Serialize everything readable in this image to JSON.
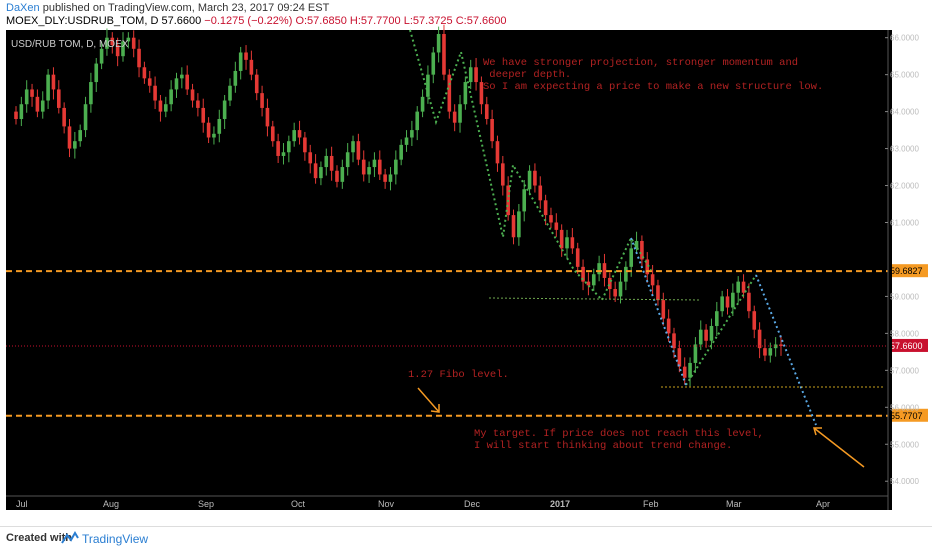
{
  "header": {
    "author": "DaXen",
    "published": "published on TradingView.com, March 23, 2017 09:24 EST",
    "symbol": "MOEX_DLY:USDRUB_TOM, D",
    "last": "57.6600",
    "change": "−0.1275 (−0.22%)",
    "open": "O:57.6850",
    "high": "H:57.7700",
    "low": "L:57.3725",
    "close": "C:57.6600"
  },
  "chart_label": "USD/RUB TOM, D, MOEX",
  "chart_data": {
    "type": "candlestick",
    "x_labels": [
      "Jul",
      "Aug",
      "Sep",
      "Oct",
      "Nov",
      "Dec",
      "2017",
      "Feb",
      "Mar",
      "Apr"
    ],
    "y_ticks": [
      "66.0000",
      "65.0000",
      "64.0000",
      "63.0000",
      "62.0000",
      "61.0000",
      "59.0000",
      "58.0000",
      "57.0000",
      "56.0000",
      "55.0000",
      "54.0000"
    ],
    "ylim": [
      53.6,
      66.1
    ],
    "last_price": "57.6600",
    "levels": [
      {
        "value": "59.6827",
        "color": "#f59a23"
      },
      {
        "value": "55.7707",
        "color": "#f59a23"
      }
    ],
    "closes": [
      63.8,
      64.2,
      64.6,
      64.4,
      64.0,
      64.3,
      65.0,
      64.6,
      64.1,
      63.6,
      63.0,
      63.2,
      63.5,
      64.2,
      64.8,
      65.3,
      65.7,
      66.0,
      65.8,
      65.5,
      65.9,
      66.0,
      65.7,
      65.2,
      64.9,
      64.7,
      64.3,
      64.0,
      64.2,
      64.6,
      64.9,
      65.0,
      64.6,
      64.3,
      64.1,
      63.7,
      63.3,
      63.4,
      63.8,
      64.3,
      64.7,
      65.1,
      65.6,
      65.4,
      65.0,
      64.5,
      64.1,
      63.6,
      63.2,
      62.8,
      62.9,
      63.2,
      63.5,
      63.3,
      62.9,
      62.6,
      62.2,
      62.5,
      62.8,
      62.4,
      62.1,
      62.5,
      62.9,
      63.2,
      62.7,
      62.3,
      62.5,
      62.7,
      62.3,
      62.1,
      62.3,
      62.7,
      63.1,
      63.3,
      63.5,
      64.0,
      64.4,
      65.0,
      65.6,
      66.1,
      65.0,
      64.0,
      63.7,
      64.2,
      64.8,
      65.2,
      64.8,
      64.2,
      63.8,
      63.2,
      62.6,
      62.0,
      61.2,
      60.6,
      61.3,
      61.9,
      62.4,
      62.0,
      61.6,
      61.2,
      61.0,
      60.8,
      60.3,
      60.6,
      60.3,
      59.8,
      59.4,
      59.3,
      59.6,
      59.9,
      59.5,
      59.2,
      59.0,
      59.4,
      59.8,
      60.3,
      60.5,
      60.0,
      59.6,
      59.3,
      58.9,
      58.4,
      58.0,
      57.6,
      57.1,
      56.8,
      57.2,
      57.7,
      58.1,
      57.8,
      58.2,
      58.6,
      59.0,
      58.7,
      59.1,
      59.4,
      59.1,
      58.6,
      58.1,
      57.6,
      57.4,
      57.6,
      57.7,
      57.66
    ],
    "annotations": [
      {
        "text": [
          "We have stronger projection, stronger momentum and",
          " deeper depth.",
          "So I am expecting a price to make a new structure low."
        ]
      },
      {
        "text": [
          "1.27 Fibo level."
        ]
      },
      {
        "text": [
          "My target. If price does not reach this level,",
          "I will start thinking about trend change."
        ]
      }
    ]
  },
  "footer": {
    "created": "Created with",
    "brand": "TradingView"
  }
}
